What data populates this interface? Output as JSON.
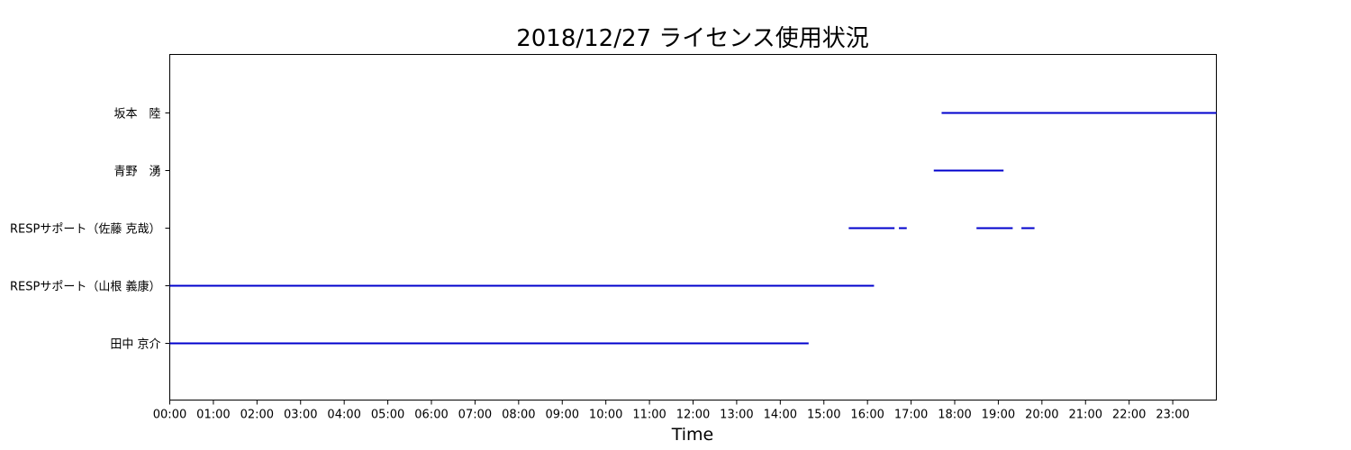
{
  "chart_data": {
    "type": "timeline",
    "title": "2018/12/27 ライセンス使用状況",
    "xlabel": "Time",
    "ylabel": "",
    "x_unit": "hour",
    "xlim": [
      0,
      24
    ],
    "x_ticks": [
      {
        "value": 0,
        "label": "00:00"
      },
      {
        "value": 1,
        "label": "01:00"
      },
      {
        "value": 2,
        "label": "02:00"
      },
      {
        "value": 3,
        "label": "03:00"
      },
      {
        "value": 4,
        "label": "04:00"
      },
      {
        "value": 5,
        "label": "05:00"
      },
      {
        "value": 6,
        "label": "06:00"
      },
      {
        "value": 7,
        "label": "07:00"
      },
      {
        "value": 8,
        "label": "08:00"
      },
      {
        "value": 9,
        "label": "09:00"
      },
      {
        "value": 10,
        "label": "10:00"
      },
      {
        "value": 11,
        "label": "11:00"
      },
      {
        "value": 12,
        "label": "12:00"
      },
      {
        "value": 13,
        "label": "13:00"
      },
      {
        "value": 14,
        "label": "14:00"
      },
      {
        "value": 15,
        "label": "15:00"
      },
      {
        "value": 16,
        "label": "16:00"
      },
      {
        "value": 17,
        "label": "17:00"
      },
      {
        "value": 18,
        "label": "18:00"
      },
      {
        "value": 19,
        "label": "19:00"
      },
      {
        "value": 20,
        "label": "20:00"
      },
      {
        "value": 21,
        "label": "21:00"
      },
      {
        "value": 22,
        "label": "22:00"
      },
      {
        "value": 23,
        "label": "23:00"
      }
    ],
    "ylim": [
      0,
      6
    ],
    "grid": false,
    "line_color": "#0000cd",
    "series": [
      {
        "label": "坂本　陸",
        "y": 5,
        "intervals": [
          [
            17.7,
            24.0
          ]
        ]
      },
      {
        "label": "青野　湧",
        "y": 4,
        "intervals": [
          [
            17.52,
            19.12
          ]
        ]
      },
      {
        "label": "RESPサポート（佐藤 克哉）",
        "y": 3,
        "intervals": [
          [
            15.57,
            16.62
          ],
          [
            16.72,
            16.9
          ],
          [
            18.5,
            19.33
          ],
          [
            19.53,
            19.83
          ]
        ]
      },
      {
        "label": "RESPサポート（山根 義康）",
        "y": 2,
        "intervals": [
          [
            0.0,
            16.15
          ]
        ]
      },
      {
        "label": "田中 京介",
        "y": 1,
        "intervals": [
          [
            0.0,
            14.65
          ]
        ]
      }
    ]
  }
}
